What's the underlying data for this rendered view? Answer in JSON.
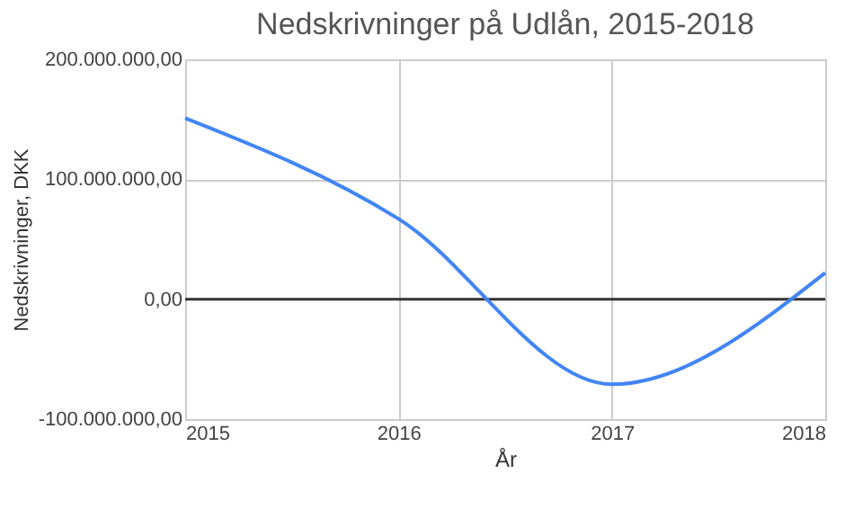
{
  "chart_data": {
    "type": "line",
    "title": "Nedskrivninger på Udlån, 2015-2018",
    "xlabel": "År",
    "ylabel": "Nedskrivninger, DKK",
    "x": [
      2015,
      2016,
      2017,
      2018
    ],
    "series": [
      {
        "color": "#4285f4",
        "values": [
          151000000,
          67000000,
          -71000000,
          22000000
        ]
      }
    ],
    "xlim": [
      2015,
      2018
    ],
    "xticks": [
      2015,
      2016,
      2017,
      2018
    ],
    "ylim": [
      -100000000,
      200000000
    ],
    "yticks": [
      {
        "value": -100000000,
        "label": "-100.000.000,00"
      },
      {
        "value": 0,
        "label": "0,00"
      },
      {
        "value": 100000000,
        "label": "100.000.000,00"
      },
      {
        "value": 200000000,
        "label": "200.000.000,00"
      }
    ],
    "ref_lines": [
      {
        "axis": "y",
        "value": 0,
        "color": "#333333"
      }
    ],
    "grid": true,
    "marker": "none",
    "line_style": "solid"
  }
}
